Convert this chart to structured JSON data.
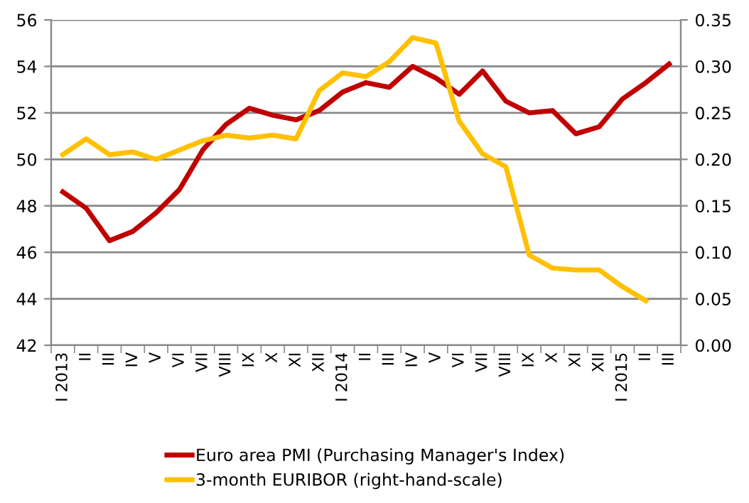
{
  "chart_data": {
    "type": "line",
    "categories": [
      "I 2013",
      "II",
      "III",
      "IV",
      "V",
      "VI",
      "VII",
      "VIII",
      "IX",
      "X",
      "XI",
      "XII",
      "I 2014",
      "II",
      "III",
      "IV",
      "V",
      "VI",
      "VII",
      "VIII",
      "IX",
      "X",
      "XI",
      "XII",
      "I 2015",
      "II",
      "III"
    ],
    "series": [
      {
        "name": "Euro area PMI (Purchasing Manager's Index)",
        "color": "#c00000",
        "values": [
          48.6,
          47.9,
          46.5,
          46.9,
          47.7,
          48.7,
          50.4,
          51.5,
          52.2,
          51.9,
          51.7,
          52.1,
          52.9,
          53.3,
          53.1,
          54.0,
          53.5,
          52.8,
          53.8,
          52.5,
          52.0,
          52.1,
          51.1,
          51.4,
          52.6,
          53.3,
          54.1
        ]
      },
      {
        "name": "3-month EURIBOR (right-hand-scale)",
        "color": "#ffc000",
        "axis": "y2",
        "values": [
          0.205,
          0.222,
          0.205,
          0.208,
          0.2,
          0.21,
          0.22,
          0.226,
          0.223,
          0.226,
          0.222,
          0.274,
          0.293,
          0.289,
          0.305,
          0.331,
          0.325,
          0.241,
          0.206,
          0.192,
          0.097,
          0.083,
          0.081,
          0.081,
          0.063,
          0.048,
          null
        ]
      }
    ],
    "ylim": [
      42,
      56
    ],
    "yticks": [
      42,
      44,
      46,
      48,
      50,
      52,
      54,
      56
    ],
    "y2lim": [
      0,
      0.35
    ],
    "y2ticks": [
      {
        "value": 0,
        "label": "0.00"
      },
      {
        "value": 0.05,
        "label": "0.05"
      },
      {
        "value": 0.1,
        "label": "0.10"
      },
      {
        "value": 0.15,
        "label": "0.15"
      },
      {
        "value": 0.2,
        "label": "0.20"
      },
      {
        "value": 0.25,
        "label": "0.25"
      },
      {
        "value": 0.3,
        "label": "0.30"
      },
      {
        "value": 0.35,
        "label": "0.35"
      }
    ],
    "grid": "y",
    "legend": "bottom",
    "marker": "none",
    "line_style": "solid"
  }
}
